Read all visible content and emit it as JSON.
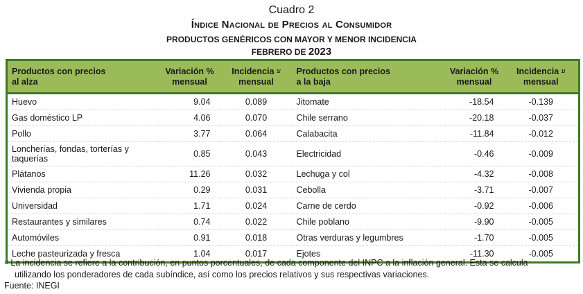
{
  "title": {
    "cuadro": "Cuadro 2",
    "main": "Índice Nacional de Precios al Consumidor",
    "subtitle": "PRODUCTOS GENÉRICOS CON MAYOR Y MENOR INCIDENCIA",
    "period_prefix": "FEBRERO DE",
    "period_year": "2023"
  },
  "table": {
    "headers": {
      "up_product_1": "Productos con precios",
      "up_product_2": "al alza",
      "up_var_1": "Variación %",
      "up_var_2": "mensual",
      "up_inc_1": "Incidencia",
      "up_inc_sup": "1/",
      "up_inc_2": "mensual",
      "down_product_1": "Productos con precios",
      "down_product_2": "a la baja",
      "down_var_1": "Variación %",
      "down_var_2": "mensual",
      "down_inc_1": "Incidencia",
      "down_inc_sup": "1/",
      "down_inc_2": "mensual"
    },
    "rows": [
      {
        "up": "Huevo",
        "up_var": "9.04",
        "up_inc": "0.089",
        "down": "Jitomate",
        "down_var": "-18.54",
        "down_inc": "-0.139"
      },
      {
        "up": "Gas doméstico LP",
        "up_var": "4.06",
        "up_inc": "0.070",
        "down": "Chile serrano",
        "down_var": "-20.18",
        "down_inc": "-0.037"
      },
      {
        "up": "Pollo",
        "up_var": "3.77",
        "up_inc": "0.064",
        "down": "Calabacita",
        "down_var": "-11.84",
        "down_inc": "-0.012"
      },
      {
        "up": "Loncherías, fondas, torterías y taquerías",
        "up_var": "0.85",
        "up_inc": "0.043",
        "down": "Electricidad",
        "down_var": "-0.46",
        "down_inc": "-0.009"
      },
      {
        "up": "Plátanos",
        "up_var": "11.26",
        "up_inc": "0.032",
        "down": "Lechuga y col",
        "down_var": "-4.32",
        "down_inc": "-0.008"
      },
      {
        "up": "Vivienda propia",
        "up_var": "0.29",
        "up_inc": "0.031",
        "down": "Cebolla",
        "down_var": "-3.71",
        "down_inc": "-0.007"
      },
      {
        "up": "Universidad",
        "up_var": "1.71",
        "up_inc": "0.024",
        "down": "Carne de cerdo",
        "down_var": "-0.92",
        "down_inc": "-0.006"
      },
      {
        "up": "Restaurantes y similares",
        "up_var": "0.74",
        "up_inc": "0.022",
        "down": "Chile poblano",
        "down_var": "-9.90",
        "down_inc": "-0.005"
      },
      {
        "up": "Automóviles",
        "up_var": "0.91",
        "up_inc": "0.018",
        "down": "Otras verduras y legumbres",
        "down_var": "-1.70",
        "down_inc": "-0.005"
      },
      {
        "up": "Leche pasteurizada y fresca",
        "up_var": "1.04",
        "up_inc": "0.017",
        "down": "Ejotes",
        "down_var": "-11.30",
        "down_inc": "-0.005"
      }
    ]
  },
  "footnote": {
    "mark": "1/",
    "line1": "La incidencia se refiere a la contribución, en puntos porcentuales, de cada componente del INPC a la inflación general. Esta se calcula",
    "line2": "utilizando los ponderadores de cada subíndice, así como los precios relativos y sus respectivas variaciones."
  },
  "source": "Fuente: INEGI",
  "colors": {
    "header_bg": "#9bbb59",
    "border": "#3f7a22"
  }
}
